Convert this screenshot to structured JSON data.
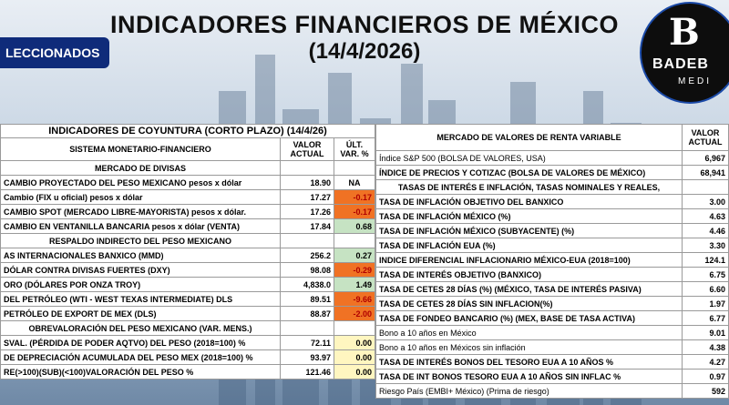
{
  "header": {
    "title": "INDICADORES FINANCIEROS DE MÉXICO",
    "date": "(14/4/2026)",
    "badge": "LECCIONADOS"
  },
  "logo": {
    "mark": "B",
    "name": "BADEB",
    "sub": "MEDI"
  },
  "left": {
    "title": "INDICADORES DE COYUNTURA (CORTO PLAZO) (14/4/26)",
    "col_label": "SISTEMA MONETARIO-FINANCIERO",
    "col_value": "VALOR ACTUAL",
    "col_var": "ÚLT. VAR. %",
    "rows": [
      {
        "label": "MERCADO DE DIVISAS",
        "value": "",
        "var": "",
        "kind": "section"
      },
      {
        "label": "CAMBIO PROYECTADO DEL PESO MEXICANO pesos x dólar",
        "value": "18.90",
        "var": "NA",
        "kind": "na"
      },
      {
        "label": "Cambio (FIX u oficial) pesos x dólar",
        "value": "17.27",
        "var": "-0.17",
        "kind": "neg"
      },
      {
        "label": "CAMBIO SPOT (MERCADO LIBRE-MAYORISTA) pesos x dólar.",
        "value": "17.26",
        "var": "-0.17",
        "kind": "neg"
      },
      {
        "label": "CAMBIO EN VENTANILLA BANCARIA pesos x dólar (VENTA)",
        "value": "17.84",
        "var": "0.68",
        "kind": "pos"
      },
      {
        "label": "RESPALDO INDIRECTO DEL PESO MEXICANO",
        "value": "",
        "var": "",
        "kind": "section"
      },
      {
        "label": "AS INTERNACIONALES BANXICO (MMD)",
        "value": "256.2",
        "var": "0.27",
        "kind": "pos"
      },
      {
        "label": "DÓLAR CONTRA DIVISAS FUERTES (DXY)",
        "value": "98.08",
        "var": "-0.29",
        "kind": "neg"
      },
      {
        "label": "ORO (DÓLARES POR ONZA TROY)",
        "value": "4,838.0",
        "var": "1.49",
        "kind": "pos"
      },
      {
        "label": "DEL PETRÓLEO (WTI - WEST TEXAS INTERMEDIATE) DLS",
        "value": "89.51",
        "var": "-9.66",
        "kind": "neg"
      },
      {
        "label": "PETRÓLEO DE EXPORT DE MEX (DLS)",
        "value": "88.87",
        "var": "-2.00",
        "kind": "neg"
      },
      {
        "label": "OBREVALORACIÓN DEL PESO MEXICANO (VAR. MENS.)",
        "value": "",
        "var": "",
        "kind": "section"
      },
      {
        "label": "SVAL. (PÉRDIDA DE PODER AQTVO) DEL PESO (2018=100) %",
        "value": "72.11",
        "var": "0.00",
        "kind": "yel"
      },
      {
        "label": "DE DEPRECIACIÓN ACUMULADA DEL PESO MEX (2018=100) %",
        "value": "93.97",
        "var": "0.00",
        "kind": "yel"
      },
      {
        "label": "RE(>100)(SUB)(<100)VALORACIÓN DEL PESO  %",
        "value": "121.46",
        "var": "0.00",
        "kind": "yel"
      }
    ]
  },
  "right": {
    "col_label": "MERCADO DE VALORES DE RENTA VARIABLE",
    "col_value": "VALOR ACTUAL",
    "rows": [
      {
        "label": "Índice S&P 500 (BOLSA DE VALORES, USA)",
        "value": "6,967",
        "kind": "normal"
      },
      {
        "label": "ÍNDICE DE PRECIOS Y COTIZAC (BOLSA DE VALORES DE MÉXICO)",
        "value": "68,941",
        "kind": "bold"
      },
      {
        "label": "TASAS DE INTERÉS E INFLACIÓN, TASAS NOMINALES Y REALES,",
        "value": "",
        "kind": "section"
      },
      {
        "label": "TASA DE INFLACIÓN OBJETIVO DEL BANXICO",
        "value": "3.00",
        "kind": "bold"
      },
      {
        "label": "TASA DE INFLACIÓN MÉXICO (%)",
        "value": "4.63",
        "kind": "bold"
      },
      {
        "label": "TASA DE INFLACIÓN MÉXICO (SUBYACENTE) (%)",
        "value": "4.46",
        "kind": "bold"
      },
      {
        "label": "TASA DE INFLACIÓN EUA (%)",
        "value": "3.30",
        "kind": "bold"
      },
      {
        "label": "INDICE DIFERENCIAL INFLACIONARIO MÉXICO-EUA (2018=100)",
        "value": "124.1",
        "kind": "bold"
      },
      {
        "label": "TASA DE INTERÉS OBJETIVO (BANXICO)",
        "value": "6.75",
        "kind": "bold"
      },
      {
        "label": "TASA DE CETES 28 DÍAS (%) (MÉXICO, TASA DE INTERÉS PASIVA)",
        "value": "6.60",
        "kind": "bold"
      },
      {
        "label": "TASA DE CETES 28 DÍAS SIN INFLACION(%)",
        "value": "1.97",
        "kind": "bold"
      },
      {
        "label": "TASA DE FONDEO BANCARIO (%) (MEX, BASE DE TASA ACTIVA)",
        "value": "6.77",
        "kind": "bold"
      },
      {
        "label": "Bono a 10 años en México",
        "value": "9.01",
        "kind": "normal"
      },
      {
        "label": "Bono a 10 años en Méxicos sin inflación",
        "value": "4.38",
        "kind": "normal"
      },
      {
        "label": "TASA DE INTERÉS BONOS DEL TESORO EUA A 10 AÑOS %",
        "value": "4.27",
        "kind": "bold"
      },
      {
        "label": "TASA DE INT BONOS TESORO EUA A 10 AÑOS SIN INFLAC %",
        "value": "0.97",
        "kind": "bold"
      },
      {
        "label": "Riesgo País (EMBI+ México) (Prima de riesgo)",
        "value": "592",
        "kind": "normal"
      }
    ]
  }
}
